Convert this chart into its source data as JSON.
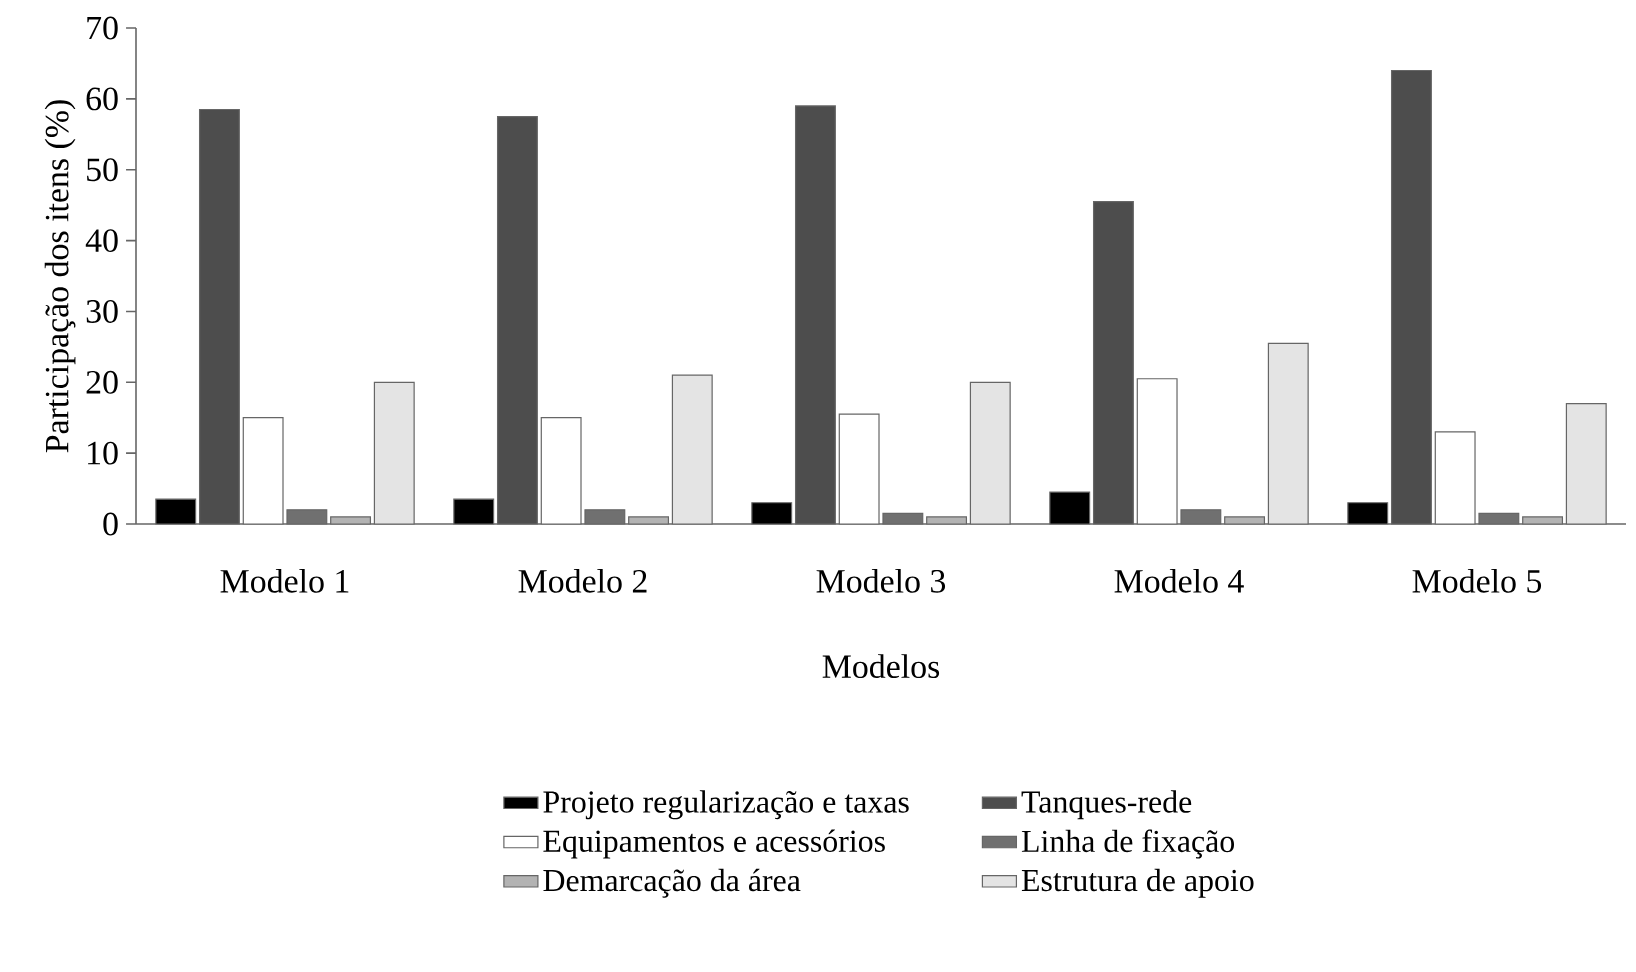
{
  "chart_data": {
    "type": "bar",
    "xlabel": "Modelos",
    "ylabel": "Participação dos itens (%)",
    "categories": [
      "Modelo 1",
      "Modelo 2",
      "Modelo 3",
      "Modelo 4",
      "Modelo 5"
    ],
    "series": [
      {
        "name": "Projeto regularização e taxas",
        "color": "#000000",
        "values": [
          3.5,
          3.5,
          3,
          4.5,
          3
        ]
      },
      {
        "name": "Tanques-rede",
        "color": "#4d4d4d",
        "values": [
          58.5,
          57.5,
          59,
          45.5,
          64
        ]
      },
      {
        "name": "Equipamentos e acessórios",
        "color": "#ffffff",
        "values": [
          15,
          15,
          15.5,
          20.5,
          13
        ]
      },
      {
        "name": "Linha de fixação",
        "color": "#707070",
        "values": [
          2,
          2,
          1.5,
          2,
          1.5
        ]
      },
      {
        "name": "Demarcação da área",
        "color": "#b3b3b3",
        "values": [
          1,
          1,
          1,
          1,
          1
        ]
      },
      {
        "name": "Estrutura de apoio",
        "color": "#e4e4e4",
        "values": [
          20,
          21,
          20,
          25.5,
          17
        ]
      }
    ],
    "ylim": [
      0,
      70
    ],
    "yticks": [
      0,
      10,
      20,
      30,
      40,
      50,
      60,
      70
    ],
    "grid": false,
    "legend": "bottom"
  }
}
